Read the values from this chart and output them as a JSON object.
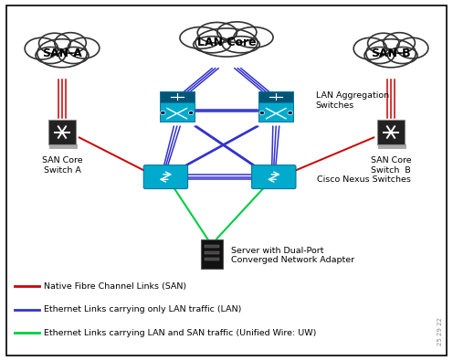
{
  "background_color": "#ffffff",
  "border_color": "#000000",
  "fig_width": 4.96,
  "fig_height": 3.95,
  "san_switch_color": "#222222",
  "san_switch_shadow": "#aaaaaa",
  "lan_agg_color": "#00aacc",
  "lan_agg_dark": "#005577",
  "lan_agg_edge": "#007799",
  "nexus_color": "#00aacc",
  "nexus_edge": "#007799",
  "server_color": "#111111",
  "server_bay_color": "#444444",
  "server_bay_edge": "#777777",
  "red_color": "#cc0000",
  "blue_color": "#3333cc",
  "green_color": "#00cc44",
  "cloud_edge": "#333333",
  "cloud_fill": "#ffffff",
  "legend": [
    {
      "color": "#cc0000",
      "label": "Native Fibre Channel Links (SAN)"
    },
    {
      "color": "#3333cc",
      "label": "Ethernet Links carrying only LAN traffic (LAN)"
    },
    {
      "color": "#00cc44",
      "label": "Ethernet Links carrying LAN and SAN traffic (Unified Wire: UW)"
    }
  ],
  "watermark": "25 29 22",
  "label_san_core_A": "SAN Core\nSwitch A",
  "label_san_core_B": "SAN Core\nSwitch  B",
  "label_lan_agg": "LAN Aggregation\nSwitches",
  "label_nexus": "Cisco Nexus Switches",
  "label_server": "Server with Dual-Port\nConverged Network Adapter",
  "label_san_a": "SAN-A",
  "label_lan_core": "LAN Core",
  "label_san_b": "SAN-B"
}
